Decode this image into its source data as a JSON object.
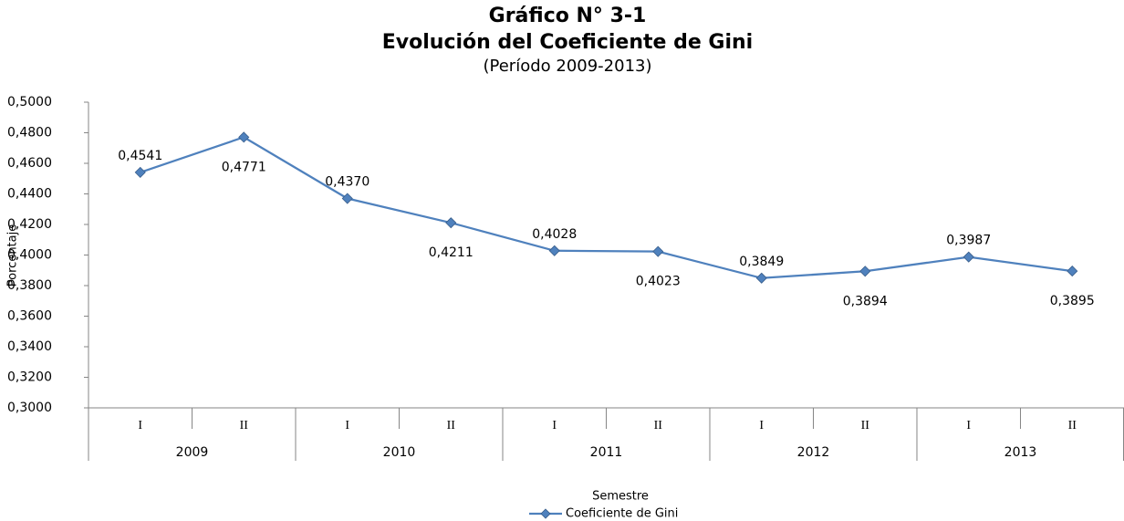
{
  "chart_data": {
    "type": "line",
    "title": "Gráfico N° 3-1",
    "subtitle": "Evolución del Coeficiente de Gini",
    "period": "(Período 2009-2013)",
    "y_label": "Porcentaje",
    "x_label": "Semestre",
    "categories": [
      "I",
      "II",
      "I",
      "II",
      "I",
      "II",
      "I",
      "II",
      "I",
      "II"
    ],
    "groups": [
      "2009",
      "2010",
      "2011",
      "2012",
      "2013"
    ],
    "series": [
      {
        "name": "Coeficiente de Gini",
        "color": "#4f81bd",
        "values": [
          0.4541,
          0.4771,
          0.437,
          0.4211,
          0.4028,
          0.4023,
          0.3849,
          0.3894,
          0.3987,
          0.3895
        ],
        "value_labels": [
          "0,4541",
          "0,4771",
          "0,4370",
          "0,4211",
          "0,4028",
          "0,4023",
          "0,3849",
          "0,3894",
          "0,3987",
          "0,3895"
        ]
      }
    ],
    "ylim": [
      0.3,
      0.5
    ],
    "yticks": [
      {
        "value": 0.3,
        "label": "0,3000"
      },
      {
        "value": 0.32,
        "label": "0,3200"
      },
      {
        "value": 0.34,
        "label": "0,3400"
      },
      {
        "value": 0.36,
        "label": "0,3600"
      },
      {
        "value": 0.38,
        "label": "0,3800"
      },
      {
        "value": 0.4,
        "label": "0,4000"
      },
      {
        "value": 0.42,
        "label": "0,4200"
      },
      {
        "value": 0.44,
        "label": "0,4400"
      },
      {
        "value": 0.46,
        "label": "0,4600"
      },
      {
        "value": 0.48,
        "label": "0,4800"
      },
      {
        "value": 0.5,
        "label": "0,5000"
      }
    ],
    "grid": false,
    "legend": "bottom"
  }
}
